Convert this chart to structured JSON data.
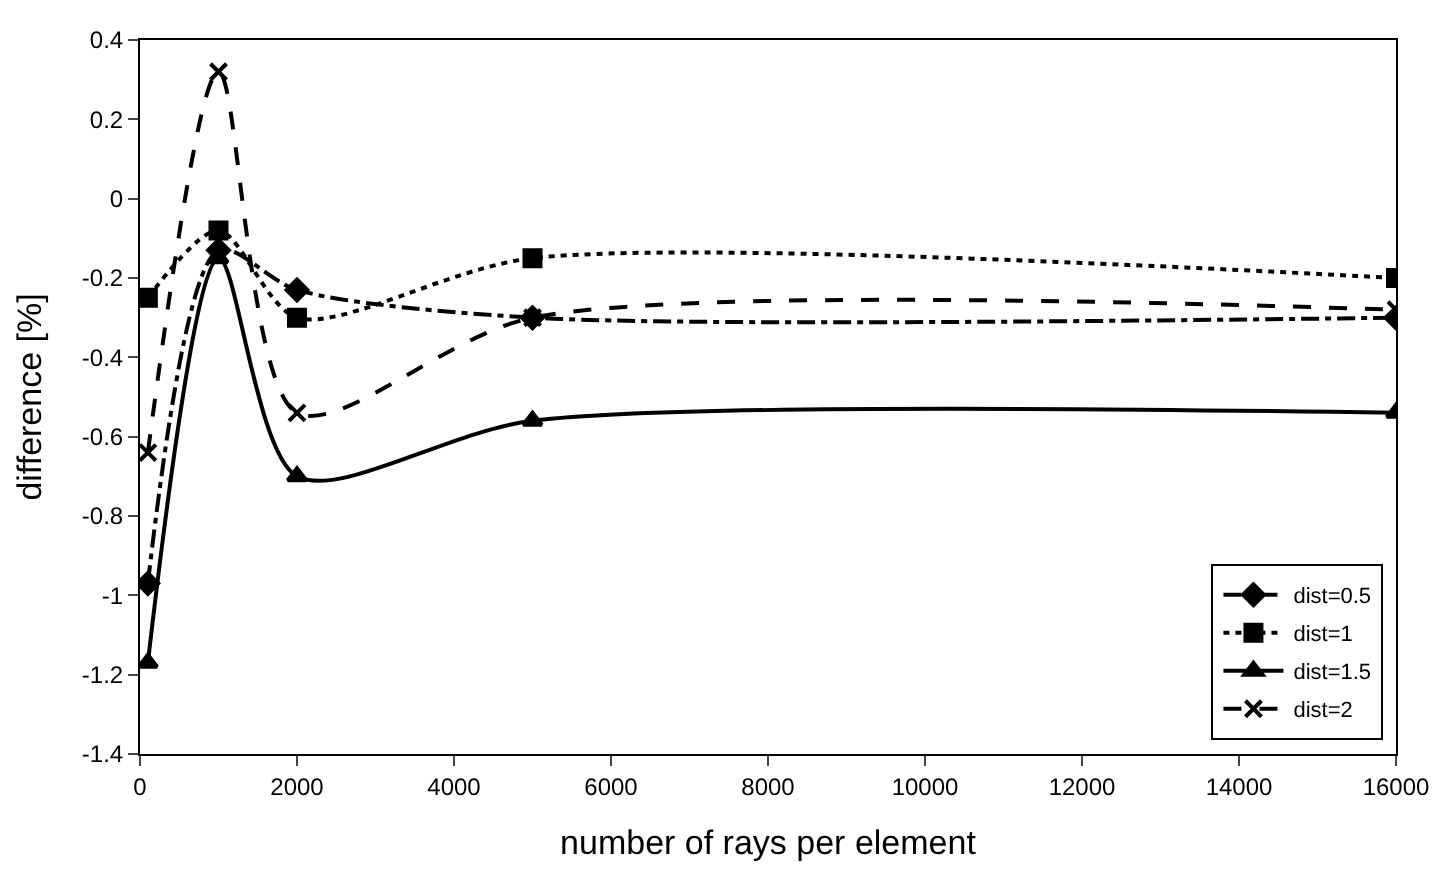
{
  "chart_data": {
    "type": "line",
    "xlabel": "number of rays per element",
    "ylabel": "difference [%]",
    "x": [
      100,
      1000,
      2000,
      5000,
      16000
    ],
    "series": [
      {
        "name": "dist=0.5",
        "color": "#000000",
        "values": [
          -0.97,
          -0.13,
          -0.23,
          -0.3,
          -0.3
        ],
        "marker": "diamond",
        "line_style": "dashdot"
      },
      {
        "name": "dist=1",
        "color": "#000000",
        "values": [
          -0.25,
          -0.08,
          -0.3,
          -0.15,
          -0.2
        ],
        "marker": "square",
        "line_style": "dotted"
      },
      {
        "name": "dist=1.5",
        "color": "#000000",
        "values": [
          -1.17,
          -0.15,
          -0.7,
          -0.56,
          -0.54
        ],
        "marker": "triangle",
        "line_style": "solid"
      },
      {
        "name": "dist=2",
        "color": "#000000",
        "values": [
          -0.64,
          0.32,
          -0.54,
          -0.3,
          -0.28
        ],
        "marker": "cross",
        "line_style": "dashed"
      }
    ],
    "xlim": [
      0,
      16000
    ],
    "xticks": [
      0,
      2000,
      4000,
      6000,
      8000,
      10000,
      12000,
      14000,
      16000
    ],
    "ylim": [
      -1.4,
      0.4
    ],
    "yticks": [
      -1.4,
      -1.2,
      -1,
      -0.8,
      -0.6,
      -0.4,
      -0.2,
      0,
      0.2,
      0.4
    ],
    "grid": false,
    "legend": "bottom right"
  }
}
